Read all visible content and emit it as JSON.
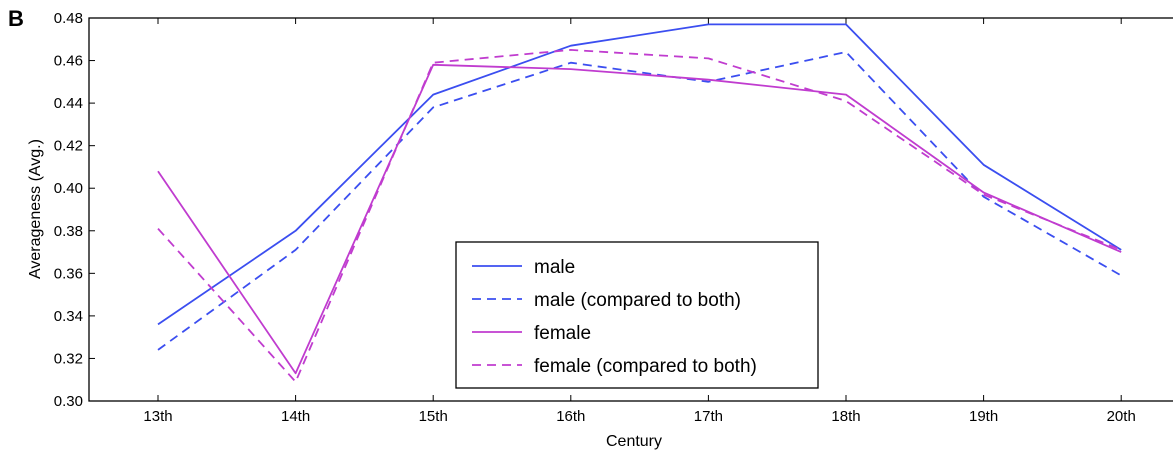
{
  "panel_label": "B",
  "chart_data": {
    "type": "line",
    "xlabel": "Century",
    "ylabel": "Averageness (Avg.)",
    "categories": [
      "13th",
      "14th",
      "15th",
      "16th",
      "17th",
      "18th",
      "19th",
      "20th"
    ],
    "ylim": [
      0.3,
      0.48
    ],
    "yticks": [
      0.3,
      0.32,
      0.34,
      0.36,
      0.38,
      0.4,
      0.42,
      0.44,
      0.46,
      0.48
    ],
    "ytick_labels": [
      "0.30",
      "0.32",
      "0.34",
      "0.36",
      "0.38",
      "0.40",
      "0.42",
      "0.44",
      "0.46",
      "0.48"
    ],
    "grid": false,
    "legend_position": "lower-center",
    "series": [
      {
        "name": "male",
        "color": "#3b4ef0",
        "dash": "solid",
        "values": [
          0.336,
          0.38,
          0.444,
          0.467,
          0.477,
          0.477,
          0.411,
          0.371
        ]
      },
      {
        "name": "male (compared to both)",
        "color": "#3b4ef0",
        "dash": "dashed",
        "values": [
          0.324,
          0.371,
          0.438,
          0.459,
          0.45,
          0.464,
          0.396,
          0.359
        ]
      },
      {
        "name": "female",
        "color": "#c03ccf",
        "dash": "solid",
        "values": [
          0.408,
          0.313,
          0.458,
          0.456,
          0.451,
          0.444,
          0.398,
          0.37
        ]
      },
      {
        "name": "female (compared to both)",
        "color": "#c03ccf",
        "dash": "dashed",
        "values": [
          0.381,
          0.309,
          0.459,
          0.465,
          0.461,
          0.441,
          0.397,
          0.371
        ]
      }
    ]
  }
}
